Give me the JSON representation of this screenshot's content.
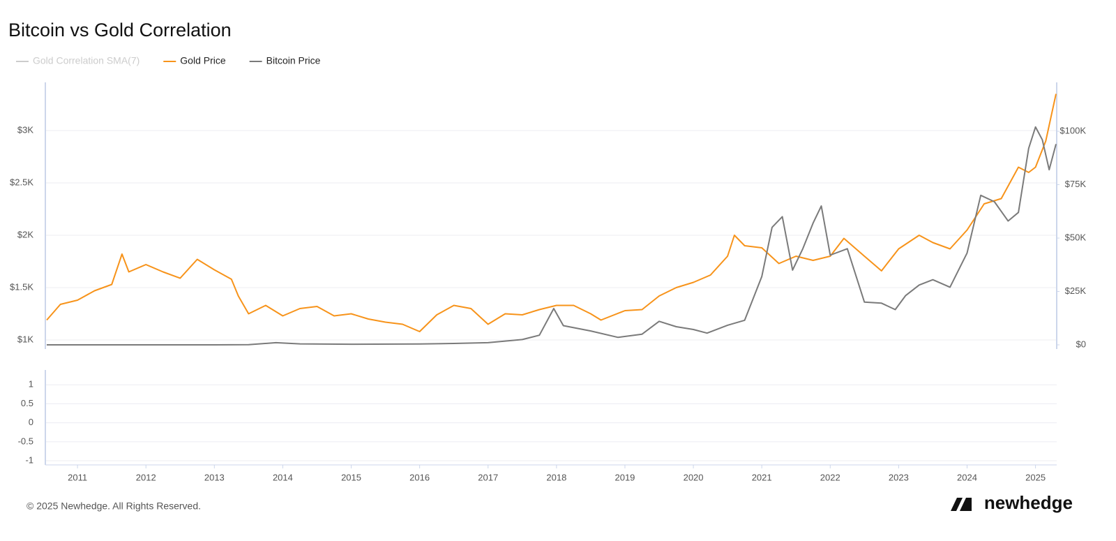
{
  "chart_data": [
    {
      "type": "line",
      "title": "Bitcoin vs Gold Correlation",
      "legend": "top-left",
      "grid": true,
      "xlim": [
        2010.53,
        2025.31
      ],
      "xticks": [
        2011,
        2012,
        2013,
        2014,
        2015,
        2016,
        2017,
        2018,
        2019,
        2020,
        2021,
        2022,
        2023,
        2024,
        2025
      ],
      "ylim": [
        913,
        3460
      ],
      "yticks": [
        {
          "value": 1000,
          "label": "$1K"
        },
        {
          "value": 1500,
          "label": "$1.5K"
        },
        {
          "value": 2000,
          "label": "$2K"
        },
        {
          "value": 2500,
          "label": "$2.5K"
        },
        {
          "value": 3000,
          "label": "$3K"
        }
      ],
      "y2lim": [
        -1960,
        122900
      ],
      "y2ticks": [
        {
          "value": 0,
          "label": "$0"
        },
        {
          "value": 25000,
          "label": "$25K"
        },
        {
          "value": 50000,
          "label": "$50K"
        },
        {
          "value": 75000,
          "label": "$75K"
        },
        {
          "value": 100000,
          "label": "$100K"
        }
      ],
      "series": [
        {
          "name": "Gold Price",
          "color": "#f7931a",
          "x": [
            2010.55,
            2010.75,
            2011.0,
            2011.25,
            2011.5,
            2011.65,
            2011.75,
            2012.0,
            2012.25,
            2012.5,
            2012.75,
            2013.0,
            2013.25,
            2013.35,
            2013.5,
            2013.75,
            2014.0,
            2014.25,
            2014.5,
            2014.75,
            2015.0,
            2015.25,
            2015.5,
            2015.75,
            2016.0,
            2016.25,
            2016.5,
            2016.75,
            2017.0,
            2017.25,
            2017.5,
            2017.75,
            2018.0,
            2018.25,
            2018.5,
            2018.65,
            2019.0,
            2019.25,
            2019.5,
            2019.75,
            2020.0,
            2020.25,
            2020.5,
            2020.6,
            2020.75,
            2021.0,
            2021.25,
            2021.5,
            2021.75,
            2022.0,
            2022.2,
            2022.5,
            2022.75,
            2023.0,
            2023.3,
            2023.5,
            2023.75,
            2024.0,
            2024.25,
            2024.5,
            2024.75,
            2024.9,
            2025.0,
            2025.15,
            2025.3
          ],
          "values": [
            1190,
            1340,
            1380,
            1470,
            1530,
            1820,
            1650,
            1720,
            1650,
            1590,
            1770,
            1670,
            1580,
            1420,
            1250,
            1330,
            1230,
            1300,
            1320,
            1230,
            1250,
            1200,
            1170,
            1150,
            1080,
            1240,
            1330,
            1300,
            1150,
            1250,
            1240,
            1290,
            1330,
            1330,
            1250,
            1190,
            1280,
            1290,
            1420,
            1500,
            1550,
            1620,
            1800,
            2000,
            1900,
            1880,
            1730,
            1800,
            1760,
            1800,
            1970,
            1800,
            1660,
            1870,
            2000,
            1930,
            1870,
            2050,
            2300,
            2350,
            2650,
            2600,
            2650,
            2900,
            3350
          ]
        },
        {
          "name": "Bitcoin Price",
          "color": "#7a7a7a",
          "axis": "y2",
          "x": [
            2010.55,
            2011.5,
            2012.0,
            2013.0,
            2013.5,
            2013.9,
            2014.25,
            2015.0,
            2016.0,
            2016.5,
            2017.0,
            2017.5,
            2017.75,
            2017.96,
            2018.1,
            2018.5,
            2018.9,
            2019.25,
            2019.5,
            2019.75,
            2020.0,
            2020.2,
            2020.5,
            2020.75,
            2021.0,
            2021.15,
            2021.3,
            2021.45,
            2021.6,
            2021.75,
            2021.87,
            2022.0,
            2022.25,
            2022.5,
            2022.75,
            2022.95,
            2023.1,
            2023.3,
            2023.5,
            2023.75,
            2024.0,
            2024.2,
            2024.4,
            2024.6,
            2024.75,
            2024.9,
            2025.0,
            2025.1,
            2025.2,
            2025.3
          ],
          "values": [
            0.07,
            15,
            6,
            13,
            100,
            1000,
            450,
            300,
            430,
            650,
            1000,
            2500,
            4500,
            17000,
            9000,
            6500,
            3500,
            5000,
            11000,
            8500,
            7200,
            5500,
            9200,
            11500,
            32000,
            55000,
            60000,
            35000,
            45000,
            57000,
            65000,
            42000,
            45000,
            20000,
            19500,
            16500,
            23000,
            28000,
            30500,
            27000,
            43000,
            70000,
            67000,
            58000,
            62000,
            92000,
            102000,
            96000,
            82000,
            94000
          ]
        }
      ]
    },
    {
      "type": "line",
      "grid": true,
      "ylim": [
        -1.11,
        1.39
      ],
      "yticks": [
        -1,
        -0.5,
        0,
        0.5,
        1
      ],
      "series": [
        {
          "name": "Gold Correlation SMA(7)",
          "color": "#cccccc",
          "visible": false
        }
      ]
    }
  ],
  "footer": {
    "copyright": "© 2025 Newhedge. All Rights Reserved.",
    "brand": "newhedge"
  }
}
